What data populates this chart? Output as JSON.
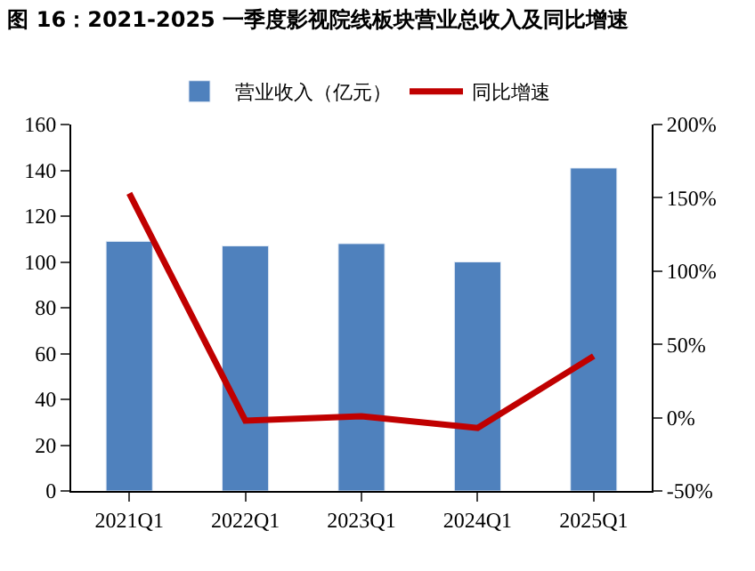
{
  "chart_data": {
    "type": "bar",
    "title": "图 16：2021-2025 一季度影视院线板块营业总收入及同比增速",
    "categories": [
      "2021Q1",
      "2022Q1",
      "2023Q1",
      "2024Q1",
      "2025Q1"
    ],
    "series": [
      {
        "name": "营业收入（亿元）",
        "color": "#4f81bd",
        "values": [
          109,
          107,
          108,
          100,
          141
        ]
      },
      {
        "name": "同比增速",
        "type": "line",
        "axis": "y2",
        "color": "#c00000",
        "line_style": "solid",
        "values": [
          153,
          -2,
          1,
          -7,
          42
        ]
      }
    ],
    "ylim": [
      0,
      160
    ],
    "yticks": [
      0,
      20,
      40,
      60,
      80,
      100,
      120,
      140,
      160
    ],
    "y2lim": [
      -50,
      200
    ],
    "y2ticks": [
      {
        "value": -50,
        "label": "-50%"
      },
      {
        "value": 0,
        "label": "0%"
      },
      {
        "value": 50,
        "label": "50%"
      },
      {
        "value": 100,
        "label": "100%"
      },
      {
        "value": 150,
        "label": "150%"
      },
      {
        "value": 200,
        "label": "200%"
      }
    ],
    "legend": "top",
    "marker": "none"
  }
}
